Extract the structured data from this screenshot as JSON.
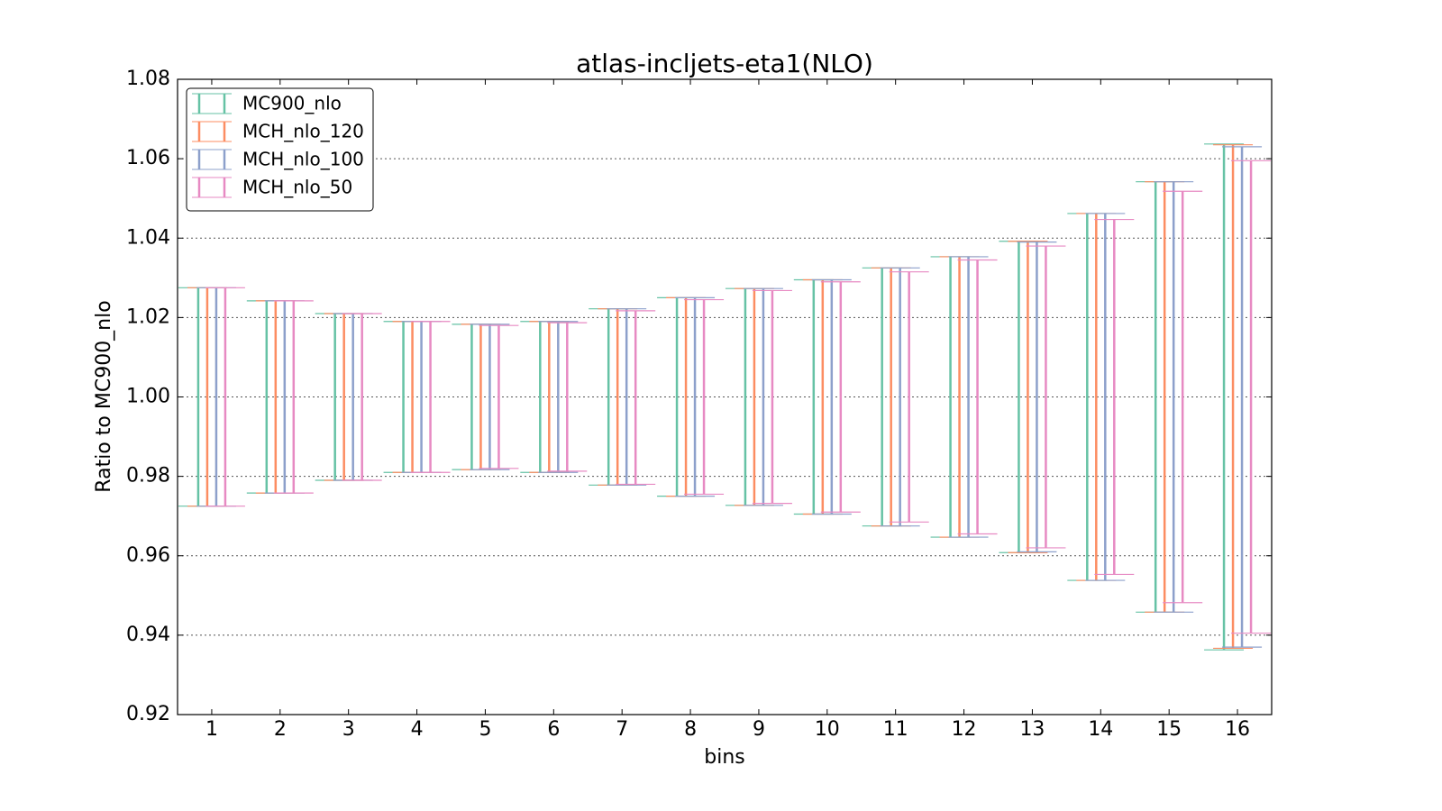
{
  "chart_data": {
    "type": "errorbar",
    "title": "atlas-incljets-eta1(NLO)",
    "x_label": "bins",
    "y_label": "Ratio to MC900_nlo",
    "x": [
      1,
      2,
      3,
      4,
      5,
      6,
      7,
      8,
      9,
      10,
      11,
      12,
      13,
      14,
      15,
      16
    ],
    "xlim": [
      0.5,
      16.5
    ],
    "xticks": [
      1,
      2,
      3,
      4,
      5,
      6,
      7,
      8,
      9,
      10,
      11,
      12,
      13,
      14,
      15,
      16
    ],
    "ylim": [
      0.92,
      1.08
    ],
    "yticks": [
      0.92,
      0.94,
      0.96,
      0.98,
      {
        "value": 1,
        "label": "1.00"
      },
      1.02,
      1.04,
      1.06,
      1.08
    ],
    "grid": true,
    "legend": "upper left",
    "series": [
      {
        "name": "MC900_nlo",
        "color": "#66c2a5",
        "lower": [
          0.9725,
          0.9758,
          0.979,
          0.981,
          0.9817,
          0.981,
          0.9778,
          0.975,
          0.9727,
          0.9705,
          0.9675,
          0.9647,
          0.9608,
          0.9538,
          0.9458,
          0.9363
        ],
        "upper": [
          1.0275,
          1.0242,
          1.021,
          1.019,
          1.0183,
          1.019,
          1.0222,
          1.025,
          1.0273,
          1.0295,
          1.0325,
          1.0353,
          1.0392,
          1.0462,
          1.0542,
          1.0637
        ]
      },
      {
        "name": "MCH_nlo_120",
        "color": "#fc8d62",
        "lower": [
          0.9725,
          0.9758,
          0.979,
          0.981,
          0.9817,
          0.981,
          0.9778,
          0.975,
          0.9727,
          0.9705,
          0.9675,
          0.9647,
          0.9608,
          0.9538,
          0.9458,
          0.9367
        ],
        "upper": [
          1.0275,
          1.0242,
          1.021,
          1.019,
          1.0183,
          1.019,
          1.0222,
          1.025,
          1.0273,
          1.0295,
          1.0325,
          1.0353,
          1.0392,
          1.0462,
          1.0542,
          1.0635
        ]
      },
      {
        "name": "MCH_nlo_100",
        "color": "#8da0cb",
        "lower": [
          0.9725,
          0.9758,
          0.979,
          0.981,
          0.9817,
          0.981,
          0.9778,
          0.975,
          0.9727,
          0.9705,
          0.9675,
          0.9647,
          0.961,
          0.9538,
          0.9458,
          0.937
        ],
        "upper": [
          1.0275,
          1.0242,
          1.021,
          1.019,
          1.0183,
          1.019,
          1.0222,
          1.025,
          1.0273,
          1.0295,
          1.0325,
          1.0353,
          1.039,
          1.0462,
          1.0542,
          1.063
        ]
      },
      {
        "name": "MCH_nlo_50",
        "color": "#e78ac3",
        "lower": [
          0.9725,
          0.9758,
          0.979,
          0.981,
          0.982,
          0.9813,
          0.978,
          0.9755,
          0.9732,
          0.971,
          0.9685,
          0.9655,
          0.962,
          0.9553,
          0.9482,
          0.9405
        ],
        "upper": [
          1.0275,
          1.0242,
          1.021,
          1.019,
          1.018,
          1.0187,
          1.0217,
          1.0245,
          1.0268,
          1.029,
          1.0315,
          1.0345,
          1.038,
          1.0447,
          1.0518,
          1.0595
        ]
      }
    ]
  }
}
